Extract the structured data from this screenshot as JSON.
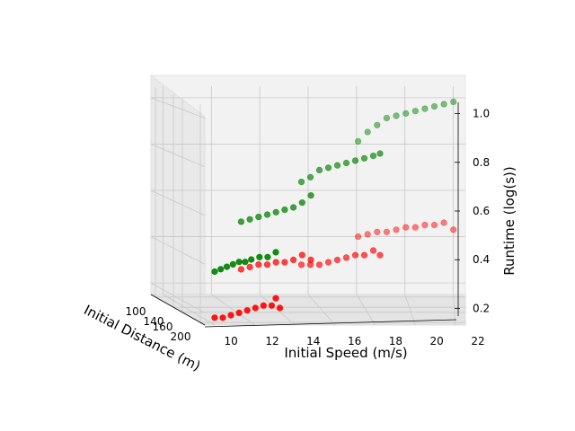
{
  "chart_data": {
    "type": "scatter",
    "title": "",
    "xlabel": "Initial Speed (m/s)",
    "ylabel": "Initial Distance (m)",
    "zlabel": "Runtime (log(s))",
    "x_ticks": [
      "10",
      "12",
      "14",
      "16",
      "18",
      "20",
      "22"
    ],
    "y_ticks": [
      "100",
      "140",
      "160",
      "200"
    ],
    "z_ticks": [
      "0.2",
      "0.4",
      "0.6",
      "0.8",
      "1.0"
    ],
    "xlim": [
      9.5,
      22.5
    ],
    "ylim": [
      90,
      210
    ],
    "zlim": [
      0.15,
      1.05
    ],
    "grid": true,
    "series": [
      {
        "color": "#008000",
        "points": [
          {
            "x": 10.2,
            "y": 200,
            "z": 0.36
          },
          {
            "x": 10.5,
            "y": 200,
            "z": 0.37
          },
          {
            "x": 10.8,
            "y": 200,
            "z": 0.38
          },
          {
            "x": 11.1,
            "y": 200,
            "z": 0.39
          },
          {
            "x": 11.4,
            "y": 200,
            "z": 0.4
          },
          {
            "x": 11.7,
            "y": 200,
            "z": 0.4
          },
          {
            "x": 12.0,
            "y": 200,
            "z": 0.41
          },
          {
            "x": 12.4,
            "y": 200,
            "z": 0.42
          },
          {
            "x": 12.8,
            "y": 200,
            "z": 0.42
          },
          {
            "x": 13.2,
            "y": 200,
            "z": 0.44
          },
          {
            "x": 12.2,
            "y": 160,
            "z": 0.53
          },
          {
            "x": 12.6,
            "y": 160,
            "z": 0.54
          },
          {
            "x": 13.0,
            "y": 160,
            "z": 0.55
          },
          {
            "x": 13.4,
            "y": 160,
            "z": 0.56
          },
          {
            "x": 13.8,
            "y": 160,
            "z": 0.57
          },
          {
            "x": 14.2,
            "y": 160,
            "z": 0.58
          },
          {
            "x": 14.6,
            "y": 160,
            "z": 0.59
          },
          {
            "x": 15.0,
            "y": 160,
            "z": 0.61
          },
          {
            "x": 15.4,
            "y": 160,
            "z": 0.64
          },
          {
            "x": 15.2,
            "y": 140,
            "z": 0.68
          },
          {
            "x": 15.6,
            "y": 140,
            "z": 0.7
          },
          {
            "x": 16.0,
            "y": 140,
            "z": 0.73
          },
          {
            "x": 16.4,
            "y": 140,
            "z": 0.74
          },
          {
            "x": 16.8,
            "y": 140,
            "z": 0.75
          },
          {
            "x": 17.2,
            "y": 140,
            "z": 0.76
          },
          {
            "x": 17.6,
            "y": 140,
            "z": 0.77
          },
          {
            "x": 18.0,
            "y": 140,
            "z": 0.78
          },
          {
            "x": 18.4,
            "y": 140,
            "z": 0.79
          },
          {
            "x": 18.7,
            "y": 140,
            "z": 0.8
          },
          {
            "x": 18.0,
            "y": 100,
            "z": 0.82
          },
          {
            "x": 18.4,
            "y": 100,
            "z": 0.86
          },
          {
            "x": 18.8,
            "y": 100,
            "z": 0.89
          },
          {
            "x": 19.2,
            "y": 100,
            "z": 0.92
          },
          {
            "x": 19.6,
            "y": 100,
            "z": 0.93
          },
          {
            "x": 20.0,
            "y": 100,
            "z": 0.94
          },
          {
            "x": 20.4,
            "y": 100,
            "z": 0.95
          },
          {
            "x": 20.8,
            "y": 100,
            "z": 0.96
          },
          {
            "x": 21.2,
            "y": 100,
            "z": 0.97
          },
          {
            "x": 21.6,
            "y": 100,
            "z": 0.98
          },
          {
            "x": 22.0,
            "y": 100,
            "z": 0.99
          }
        ]
      },
      {
        "color": "#ff0000",
        "points": [
          {
            "x": 10.2,
            "y": 200,
            "z": 0.17
          },
          {
            "x": 10.6,
            "y": 200,
            "z": 0.17
          },
          {
            "x": 11.0,
            "y": 200,
            "z": 0.18
          },
          {
            "x": 11.4,
            "y": 200,
            "z": 0.19
          },
          {
            "x": 11.8,
            "y": 200,
            "z": 0.2
          },
          {
            "x": 12.2,
            "y": 200,
            "z": 0.21
          },
          {
            "x": 12.6,
            "y": 200,
            "z": 0.22
          },
          {
            "x": 13.0,
            "y": 200,
            "z": 0.22
          },
          {
            "x": 13.2,
            "y": 200,
            "z": 0.25
          },
          {
            "x": 13.4,
            "y": 200,
            "z": 0.21
          },
          {
            "x": 12.2,
            "y": 160,
            "z": 0.33
          },
          {
            "x": 12.6,
            "y": 160,
            "z": 0.34
          },
          {
            "x": 13.0,
            "y": 160,
            "z": 0.35
          },
          {
            "x": 13.4,
            "y": 160,
            "z": 0.35
          },
          {
            "x": 13.8,
            "y": 160,
            "z": 0.36
          },
          {
            "x": 14.2,
            "y": 160,
            "z": 0.36
          },
          {
            "x": 14.6,
            "y": 160,
            "z": 0.37
          },
          {
            "x": 15.0,
            "y": 160,
            "z": 0.39
          },
          {
            "x": 15.4,
            "y": 160,
            "z": 0.37
          },
          {
            "x": 15.2,
            "y": 140,
            "z": 0.33
          },
          {
            "x": 15.6,
            "y": 140,
            "z": 0.33
          },
          {
            "x": 16.0,
            "y": 140,
            "z": 0.33
          },
          {
            "x": 16.4,
            "y": 140,
            "z": 0.34
          },
          {
            "x": 16.8,
            "y": 140,
            "z": 0.35
          },
          {
            "x": 17.2,
            "y": 140,
            "z": 0.36
          },
          {
            "x": 17.6,
            "y": 140,
            "z": 0.37
          },
          {
            "x": 18.0,
            "y": 140,
            "z": 0.37
          },
          {
            "x": 18.4,
            "y": 140,
            "z": 0.39
          },
          {
            "x": 18.7,
            "y": 140,
            "z": 0.37
          },
          {
            "x": 18.0,
            "y": 100,
            "z": 0.41
          },
          {
            "x": 18.4,
            "y": 100,
            "z": 0.42
          },
          {
            "x": 18.8,
            "y": 100,
            "z": 0.43
          },
          {
            "x": 19.2,
            "y": 100,
            "z": 0.43
          },
          {
            "x": 19.6,
            "y": 100,
            "z": 0.44
          },
          {
            "x": 20.0,
            "y": 100,
            "z": 0.45
          },
          {
            "x": 20.4,
            "y": 100,
            "z": 0.45
          },
          {
            "x": 20.8,
            "y": 100,
            "z": 0.46
          },
          {
            "x": 21.2,
            "y": 100,
            "z": 0.46
          },
          {
            "x": 21.6,
            "y": 100,
            "z": 0.47
          },
          {
            "x": 22.0,
            "y": 100,
            "z": 0.44
          }
        ]
      }
    ]
  }
}
